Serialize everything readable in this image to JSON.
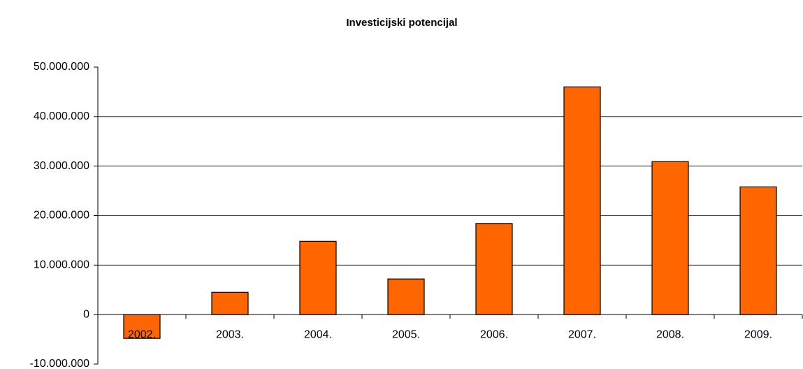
{
  "chart_data": {
    "type": "bar",
    "title": "Investicijski potencijal",
    "categories": [
      "2002.",
      "2003.",
      "2004.",
      "2005.",
      "2006.",
      "2007.",
      "2008.",
      "2009."
    ],
    "values": [
      -4800000,
      4500000,
      14800000,
      7200000,
      18400000,
      46000000,
      30900000,
      25800000
    ],
    "color": "#ff6600",
    "ylim": [
      -10000000,
      50000000
    ],
    "yticks": [
      {
        "value": -10000000,
        "label": "-10.000.000"
      },
      0,
      {
        "value": 10000000,
        "label": "10.000.000"
      },
      {
        "value": 20000000,
        "label": "20.000.000"
      },
      {
        "value": 30000000,
        "label": "30.000.000"
      },
      {
        "value": 40000000,
        "label": "40.000.000"
      },
      {
        "value": 50000000,
        "label": "50.000.000"
      }
    ],
    "grid": true
  }
}
